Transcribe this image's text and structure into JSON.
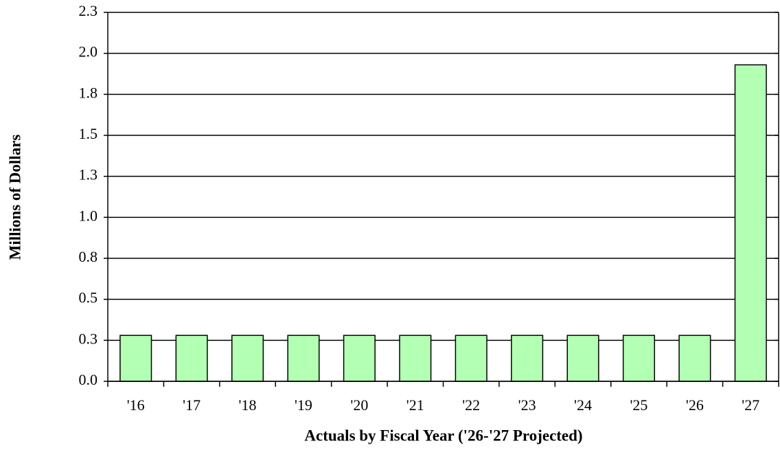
{
  "chart_data": {
    "type": "bar",
    "x_label": "Actuals by Fiscal Year ('26-'27 Projected)",
    "y_label": "Millions of Dollars",
    "categories": [
      "'16",
      "'17",
      "'18",
      "'19",
      "'20",
      "'21",
      "'22",
      "'23",
      "'24",
      "'25",
      "'26",
      "'27"
    ],
    "values": [
      0.28,
      0.28,
      0.28,
      0.28,
      0.28,
      0.28,
      0.28,
      0.28,
      0.28,
      0.28,
      0.28,
      1.93
    ],
    "color": "#b3ffb3",
    "ylim": [
      0,
      2.25
    ],
    "yticks": [
      {
        "value": 0,
        "label": "0.0"
      },
      {
        "value": 0.25,
        "label": "0.3"
      },
      0.5,
      {
        "value": 0.75,
        "label": "0.8"
      },
      {
        "value": 1,
        "label": "1.0"
      },
      {
        "value": 1.25,
        "label": "1.3"
      },
      1.5,
      {
        "value": 1.75,
        "label": "1.8"
      },
      {
        "value": 2,
        "label": "2.0"
      },
      {
        "value": 2.25,
        "label": "2.3"
      }
    ],
    "grid": true
  }
}
